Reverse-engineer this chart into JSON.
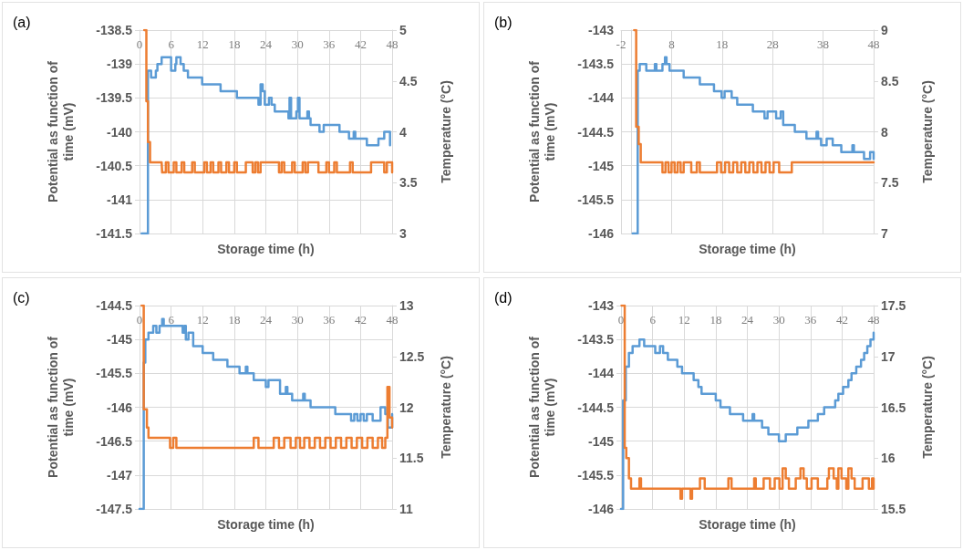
{
  "chart_data": [
    {
      "type": "step",
      "title": "(a)",
      "xlabel": "Storage time (h)",
      "ylabel": "Potential as function of time (mV)",
      "y2label": "Temperature (°C)",
      "xlim": [
        0,
        48
      ],
      "xticks": [
        0,
        6,
        12,
        18,
        24,
        30,
        36,
        42,
        48
      ],
      "ylim": [
        -141.5,
        -138.5
      ],
      "yticks": [
        -141.5,
        -141,
        -140.5,
        -140,
        -139.5,
        -139,
        -138.5
      ],
      "y2lim": [
        3,
        5
      ],
      "y2ticks": [
        3,
        3.5,
        4,
        4.5,
        5
      ],
      "grid": true,
      "marker": "none",
      "series": [
        {
          "color": "#5b9bd5",
          "x": [
            0.4,
            1.6,
            2.2,
            3.1,
            3.4,
            4.2,
            5.4,
            6,
            6.8,
            7,
            7.8,
            8.4,
            9.2,
            11.6,
            11.9,
            15.1,
            15.4,
            18,
            18.5,
            19.2,
            22.2,
            22.6,
            23,
            23.4,
            23.8,
            24.6,
            25.1,
            25.7,
            28,
            28.3,
            28.5,
            28.8,
            29.8,
            30.1,
            30.4,
            31.6,
            31.9,
            32.2,
            32.5,
            34.2,
            35,
            36.3,
            37.5,
            38,
            39.8,
            40.7,
            41,
            42.8,
            43.2,
            45.4,
            46.5,
            47.2,
            47.6
          ],
          "values": [
            -141.5,
            -139.1,
            -139.2,
            -139.1,
            -139,
            -138.9,
            -138.9,
            -139.1,
            -139,
            -138.9,
            -139,
            -139.1,
            -139.2,
            -139.2,
            -139.3,
            -139.3,
            -139.4,
            -139.4,
            -139.5,
            -139.5,
            -139.5,
            -139.6,
            -139.3,
            -139.4,
            -139.6,
            -139.5,
            -139.6,
            -139.7,
            -139.7,
            -139.8,
            -139.5,
            -139.8,
            -139.7,
            -139.5,
            -139.8,
            -139.8,
            -139.7,
            -139.8,
            -139.9,
            -140,
            -139.9,
            -139.9,
            -139.9,
            -140,
            -140.1,
            -140,
            -140.1,
            -140.1,
            -140.2,
            -140.1,
            -140,
            -140,
            -140.2
          ]
        },
        {
          "color": "#ed7d31",
          "axis": "y2",
          "x": [
            0.9,
            1.3,
            1.6,
            2,
            4.2,
            4.3,
            5,
            5.5,
            6.5,
            7,
            8,
            8.5,
            10,
            10.5,
            12.3,
            12.8,
            13.5,
            14,
            15,
            15.5,
            16.5,
            17,
            18,
            18.5,
            20.2,
            21.5,
            22,
            22.5,
            23,
            26.5,
            27,
            27.5,
            29,
            29.5,
            31,
            31.5,
            32,
            34,
            35.5,
            36,
            37,
            37.5,
            40,
            40.5,
            44,
            46.5,
            47,
            48
          ],
          "values": [
            5,
            4.3,
            3.9,
            3.7,
            3.7,
            3.6,
            3.7,
            3.6,
            3.7,
            3.6,
            3.7,
            3.6,
            3.7,
            3.6,
            3.7,
            3.6,
            3.7,
            3.6,
            3.7,
            3.6,
            3.7,
            3.6,
            3.7,
            3.6,
            3.7,
            3.6,
            3.7,
            3.6,
            3.7,
            3.6,
            3.7,
            3.6,
            3.7,
            3.6,
            3.7,
            3.6,
            3.7,
            3.6,
            3.7,
            3.6,
            3.7,
            3.6,
            3.7,
            3.6,
            3.7,
            3.6,
            3.7,
            3.6
          ]
        }
      ]
    },
    {
      "type": "step",
      "title": "(b)",
      "xlabel": "Storage time (h)",
      "ylabel": "Potential as function of time (mV)",
      "y2label": "Temperature (°C)",
      "xlim": [
        -2,
        48
      ],
      "xticks": [
        -2,
        8,
        18,
        28,
        38,
        48
      ],
      "ylim": [
        -146,
        -143
      ],
      "yticks": [
        -146,
        -145.5,
        -145,
        -144.5,
        -144,
        -143.5,
        -143
      ],
      "y2lim": [
        7,
        9
      ],
      "y2ticks": [
        7,
        7.5,
        8,
        8.5,
        9
      ],
      "grid": true,
      "marker": "none",
      "series": [
        {
          "color": "#5b9bd5",
          "x": [
            0.3,
            1.3,
            1.7,
            3,
            4.7,
            5,
            6.2,
            6.7,
            7,
            7.6,
            10.2,
            10.4,
            11.6,
            13.6,
            16.2,
            16.4,
            17.9,
            18.5,
            19.3,
            19.9,
            21,
            23.9,
            24.1,
            26.1,
            26.4,
            27,
            28.4,
            28.7,
            29.6,
            30.1,
            31.8,
            32.4,
            34.4,
            34.7,
            36.7,
            37,
            37.6,
            38.7,
            39.6,
            39.9,
            41.3,
            41.6,
            42.7,
            43.8,
            44.1,
            45.8,
            46.1,
            47.3,
            48
          ],
          "values": [
            -146,
            -143.6,
            -143.5,
            -143.6,
            -143.5,
            -143.6,
            -143.5,
            -143.4,
            -143.5,
            -143.6,
            -143.6,
            -143.7,
            -143.7,
            -143.8,
            -143.8,
            -143.9,
            -144,
            -143.9,
            -143.9,
            -144,
            -144.1,
            -144.1,
            -144.2,
            -144.2,
            -144.3,
            -144.2,
            -144.2,
            -144.3,
            -144.2,
            -144.4,
            -144.4,
            -144.5,
            -144.5,
            -144.6,
            -144.5,
            -144.6,
            -144.7,
            -144.6,
            -144.6,
            -144.7,
            -144.7,
            -144.8,
            -144.8,
            -144.7,
            -144.8,
            -144.8,
            -144.9,
            -144.8,
            -144.9
          ]
        },
        {
          "color": "#ed7d31",
          "axis": "y2",
          "x": [
            0.6,
            1,
            1.5,
            1.9,
            6.2,
            6.8,
            7.4,
            8,
            8.6,
            9.2,
            9.8,
            10.4,
            11.3,
            11.9,
            13,
            13.6,
            15.3,
            17,
            17.8,
            18.6,
            19.4,
            20.2,
            21,
            21.8,
            22.6,
            23.4,
            24.2,
            25,
            25.8,
            26.6,
            27.4,
            28.2,
            29.3,
            31.8,
            48
          ],
          "values": [
            9,
            8.05,
            7.88,
            7.7,
            7.6,
            7.7,
            7.6,
            7.7,
            7.6,
            7.7,
            7.6,
            7.7,
            7.7,
            7.6,
            7.7,
            7.6,
            7.6,
            7.7,
            7.6,
            7.7,
            7.6,
            7.7,
            7.6,
            7.7,
            7.6,
            7.7,
            7.6,
            7.7,
            7.6,
            7.7,
            7.6,
            7.7,
            7.6,
            7.7,
            7.7
          ]
        }
      ]
    },
    {
      "type": "step",
      "title": "(c)",
      "xlabel": "Storage time (h)",
      "ylabel": "Potential as function of time (mV)",
      "y2label": "Temperature (°C)",
      "xlim": [
        0,
        48
      ],
      "xticks": [
        0,
        6,
        12,
        18,
        24,
        30,
        36,
        42,
        48
      ],
      "ylim": [
        -147.5,
        -144.5
      ],
      "yticks": [
        -147.5,
        -147,
        -146.5,
        -146,
        -145.5,
        -145,
        -144.5
      ],
      "y2lim": [
        11,
        13
      ],
      "y2ticks": [
        11,
        11.5,
        12,
        12.5,
        13
      ],
      "grid": true,
      "marker": "none",
      "series": [
        {
          "color": "#5b9bd5",
          "x": [
            0,
            0.8,
            1.1,
            1.7,
            2.6,
            3.2,
            3.8,
            4.3,
            4.6,
            6.4,
            8.2,
            8.5,
            8.8,
            9.3,
            10.2,
            12,
            12.9,
            14,
            14.9,
            16.7,
            19,
            20.2,
            20.5,
            21.7,
            24,
            24.5,
            25.8,
            26.7,
            27.8,
            28.1,
            29,
            30.2,
            31.1,
            31.4,
            32.5,
            33.7,
            37.2,
            40.2,
            40.8,
            41.4,
            42,
            42.6,
            43.2,
            44.3,
            45.8,
            46.7,
            47.2,
            48
          ],
          "values": [
            -147.5,
            -145.34,
            -145,
            -144.9,
            -144.8,
            -144.9,
            -144.8,
            -144.7,
            -144.8,
            -144.8,
            -144.9,
            -144.8,
            -145,
            -144.9,
            -145.1,
            -145.2,
            -145.2,
            -145.3,
            -145.3,
            -145.4,
            -145.5,
            -145.4,
            -145.5,
            -145.6,
            -145.7,
            -145.6,
            -145.6,
            -145.8,
            -145.7,
            -145.8,
            -145.9,
            -145.9,
            -145.8,
            -145.9,
            -146,
            -146,
            -146.1,
            -146.2,
            -146.1,
            -146.2,
            -146.1,
            -146.2,
            -146.1,
            -146.2,
            -146,
            -146.1,
            -146.3,
            -146.1
          ]
        },
        {
          "color": "#ed7d31",
          "axis": "y2",
          "x": [
            0.4,
            0.8,
            1.4,
            1.7,
            5.8,
            6.4,
            7,
            7.6,
            21.7,
            22.6,
            25.5,
            26.5,
            27.5,
            28.7,
            29.7,
            30.5,
            31.3,
            32.3,
            33.3,
            34.3,
            35.3,
            36.3,
            37.3,
            38.3,
            39.3,
            40.3,
            41.3,
            42.3,
            43.3,
            44.3,
            45.3,
            46.1,
            46.7,
            47.1,
            47.5,
            48
          ],
          "values": [
            13,
            11.98,
            11.8,
            11.7,
            11.6,
            11.7,
            11.6,
            11.6,
            11.7,
            11.6,
            11.7,
            11.6,
            11.7,
            11.6,
            11.7,
            11.6,
            11.7,
            11.6,
            11.7,
            11.6,
            11.7,
            11.6,
            11.7,
            11.6,
            11.7,
            11.6,
            11.7,
            11.6,
            11.7,
            11.6,
            11.7,
            11.6,
            11.7,
            12.2,
            11.9,
            11.8
          ]
        }
      ]
    },
    {
      "type": "step",
      "title": "(d)",
      "xlabel": "Storage time (h)",
      "ylabel": "Potential as function of time (mV)",
      "y2label": "Temperature (°C)",
      "xlim": [
        0,
        48
      ],
      "xticks": [
        0,
        6,
        12,
        18,
        24,
        30,
        36,
        42,
        48
      ],
      "ylim": [
        -146,
        -143
      ],
      "yticks": [
        -146,
        -145.5,
        -145,
        -144.5,
        -144,
        -143.5,
        -143
      ],
      "y2lim": [
        15.5,
        17.5
      ],
      "y2ticks": [
        15.5,
        16,
        16.5,
        17,
        17.5
      ],
      "grid": true,
      "marker": "none",
      "series": [
        {
          "color": "#5b9bd5",
          "x": [
            0,
            0.4,
            0.9,
            1.5,
            2.2,
            3.5,
            4.4,
            6.2,
            6.5,
            7.4,
            8,
            8.9,
            9.8,
            10.7,
            11.6,
            12.8,
            13.8,
            14.7,
            15.3,
            16.8,
            18,
            18.9,
            19.8,
            20.7,
            22.8,
            23.2,
            25,
            25.3,
            26.8,
            28,
            29.5,
            30,
            31.3,
            32.2,
            33.5,
            34.7,
            35.6,
            36.8,
            37.4,
            38.6,
            40.1,
            40.7,
            41.3,
            42.2,
            43.2,
            43.8,
            44.7,
            45.6,
            46.2,
            46.8,
            47.4,
            48
          ],
          "values": [
            -146,
            -144.4,
            -143.9,
            -143.7,
            -143.6,
            -143.5,
            -143.6,
            -143.6,
            -143.7,
            -143.6,
            -143.7,
            -143.8,
            -143.8,
            -143.9,
            -144,
            -144,
            -144.1,
            -144.2,
            -144.3,
            -144.3,
            -144.4,
            -144.5,
            -144.5,
            -144.6,
            -144.6,
            -144.7,
            -144.6,
            -144.7,
            -144.8,
            -144.9,
            -144.9,
            -145,
            -144.9,
            -144.9,
            -144.8,
            -144.8,
            -144.7,
            -144.7,
            -144.6,
            -144.5,
            -144.5,
            -144.4,
            -144.3,
            -144.2,
            -144.1,
            -144,
            -143.9,
            -143.8,
            -143.7,
            -143.6,
            -143.5,
            -143.4
          ]
        },
        {
          "color": "#ed7d31",
          "axis": "y2",
          "x": [
            0.1,
            0.7,
            1,
            1.5,
            1.9,
            3.5,
            3.8,
            11.3,
            11.6,
            13.2,
            13.5,
            15,
            15.9,
            20.4,
            21,
            25.3,
            25.6,
            27.1,
            28.3,
            29.2,
            30.1,
            30.7,
            31.3,
            31.9,
            33.2,
            34.1,
            34.7,
            35.3,
            36.2,
            37.4,
            39.2,
            39.5,
            40.4,
            41,
            41.3,
            41.9,
            42.8,
            43.2,
            43.8,
            44.4,
            45.9,
            47.1,
            47.7,
            48
          ],
          "values": [
            17.5,
            16.1,
            16,
            15.8,
            15.7,
            15.8,
            15.7,
            15.6,
            15.7,
            15.6,
            15.7,
            15.8,
            15.7,
            15.8,
            15.7,
            15.8,
            15.7,
            15.8,
            15.7,
            15.8,
            15.7,
            15.9,
            15.8,
            15.7,
            15.8,
            15.9,
            15.8,
            15.7,
            15.8,
            15.7,
            15.8,
            15.9,
            15.8,
            15.7,
            15.9,
            15.8,
            15.7,
            15.9,
            15.8,
            15.7,
            15.8,
            15.7,
            15.8,
            15.7
          ]
        }
      ]
    }
  ]
}
